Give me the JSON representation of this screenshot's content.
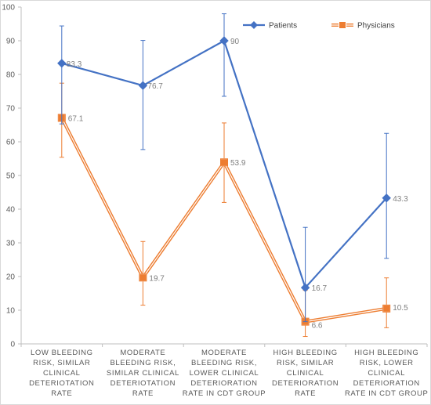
{
  "chart_data": {
    "type": "line",
    "title": "",
    "xlabel": "",
    "ylabel": "",
    "ylim": [
      0,
      100
    ],
    "yticks": [
      0,
      10,
      20,
      30,
      40,
      50,
      60,
      70,
      80,
      90,
      100
    ],
    "grid": false,
    "legend_position": "top-right",
    "categories": [
      [
        "LOW BLEEDING",
        "RISK, SIMILAR",
        "CLINICAL",
        "DETERIOTATION",
        "RATE"
      ],
      [
        "MODERATE",
        "BLEEDING RISK,",
        "SIMILAR CLINICAL",
        "DETERIOTATION",
        "RATE"
      ],
      [
        "MODERATE",
        "BLEEDING RISK,",
        "LOWER CLINICAL",
        "DETERIORATION",
        "RATE IN CDT GROUP"
      ],
      [
        "HIGH BLEEDING",
        "RISK, SIMILAR",
        "CLINICAL",
        "DETERIORATION",
        "RATE"
      ],
      [
        "HIGH BLEEDING",
        "RISK, LOWER",
        "CLINICAL",
        "DETERIORATION",
        "RATE IN CDT GROUP"
      ]
    ],
    "series": [
      {
        "name": "Patients",
        "color": "#4472c4",
        "marker": "diamond",
        "values": [
          83.3,
          76.7,
          90,
          16.7,
          43.3
        ],
        "labels": [
          "83.3",
          "76.7",
          "90",
          "16.7",
          "43.3"
        ],
        "err_low": [
          65.3,
          57.7,
          73.5,
          6.6,
          25.4
        ],
        "err_high": [
          94.4,
          90.1,
          98,
          34.6,
          62.5
        ]
      },
      {
        "name": "Physicians",
        "color": "#ed7d31",
        "marker": "square",
        "values": [
          67.1,
          19.7,
          53.9,
          6.6,
          10.5
        ],
        "labels": [
          "67.1",
          "19.7",
          "53.9",
          "6.6",
          "10.5"
        ],
        "err_low": [
          55.4,
          11.5,
          42,
          2.2,
          4.8
        ],
        "err_high": [
          77.4,
          30.4,
          65.6,
          15.9,
          19.6
        ]
      }
    ]
  }
}
